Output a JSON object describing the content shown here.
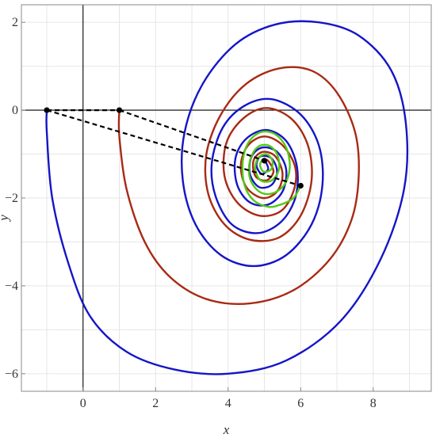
{
  "chart_data": {
    "type": "line",
    "title": "",
    "xlabel": "x",
    "ylabel": "y",
    "xlim": [
      -1.7,
      9.6
    ],
    "ylim": [
      -6.4,
      2.4
    ],
    "x_ticks": [
      0,
      2,
      4,
      6,
      8
    ],
    "y_ticks": [
      -6,
      -4,
      -2,
      0,
      2
    ],
    "x_tick_labels": [
      "0",
      "2",
      "4",
      "6",
      "8"
    ],
    "y_tick_labels": [
      "−6",
      "−4",
      "−2",
      "0",
      "2"
    ],
    "grid": true,
    "legend": "none",
    "fixed_point": [
      5.0,
      -1.15
    ],
    "colors": {
      "blue": "#1515c8",
      "red": "#a82a14",
      "green": "#55c818",
      "dashed": "#000000",
      "axis": "#000000",
      "frame": "#888888",
      "grid": "#e6e6e6"
    },
    "series": [
      {
        "color": "blue",
        "start": [
          -1.0,
          0.0
        ],
        "points": [
          [
            -1.0,
            0.0
          ],
          [
            -1.0,
            -0.5
          ],
          [
            -0.85,
            -2.0
          ],
          [
            -0.4,
            -3.5
          ],
          [
            0.2,
            -4.7
          ],
          [
            1.2,
            -5.5
          ],
          [
            2.5,
            -5.9
          ],
          [
            4.0,
            -6.0
          ],
          [
            5.6,
            -5.7
          ],
          [
            7.1,
            -4.8
          ],
          [
            8.2,
            -3.4
          ],
          [
            8.85,
            -1.8
          ],
          [
            8.9,
            -0.3
          ],
          [
            8.5,
            0.9
          ],
          [
            7.6,
            1.7
          ],
          [
            6.5,
            2.0
          ],
          [
            5.3,
            1.95
          ],
          [
            4.2,
            1.5
          ],
          [
            3.3,
            0.6
          ],
          [
            2.8,
            -0.5
          ],
          [
            2.75,
            -1.6
          ],
          [
            3.1,
            -2.6
          ],
          [
            3.8,
            -3.3
          ],
          [
            4.7,
            -3.55
          ],
          [
            5.6,
            -3.3
          ],
          [
            6.3,
            -2.6
          ],
          [
            6.6,
            -1.7
          ],
          [
            6.5,
            -0.8
          ],
          [
            6.0,
            -0.1
          ],
          [
            5.2,
            0.25
          ],
          [
            4.45,
            0.1
          ],
          [
            3.85,
            -0.4
          ],
          [
            3.55,
            -1.2
          ],
          [
            3.65,
            -1.95
          ],
          [
            4.1,
            -2.6
          ],
          [
            4.8,
            -2.8
          ],
          [
            5.45,
            -2.55
          ],
          [
            5.85,
            -2.0
          ],
          [
            5.9,
            -1.3
          ],
          [
            5.6,
            -0.7
          ],
          [
            5.05,
            -0.45
          ],
          [
            4.5,
            -0.65
          ],
          [
            4.2,
            -1.1
          ],
          [
            4.25,
            -1.7
          ],
          [
            4.6,
            -2.1
          ],
          [
            5.1,
            -2.15
          ],
          [
            5.5,
            -1.85
          ],
          [
            5.6,
            -1.35
          ],
          [
            5.35,
            -0.95
          ],
          [
            4.95,
            -0.85
          ],
          [
            4.65,
            -1.05
          ],
          [
            4.6,
            -1.45
          ],
          [
            4.85,
            -1.75
          ],
          [
            5.2,
            -1.7
          ],
          [
            5.35,
            -1.4
          ],
          [
            5.2,
            -1.1
          ],
          [
            4.9,
            -1.05
          ],
          [
            4.78,
            -1.25
          ],
          [
            4.92,
            -1.45
          ],
          [
            5.1,
            -1.35
          ],
          [
            5.05,
            -1.2
          ],
          [
            5.0,
            -1.15
          ]
        ]
      },
      {
        "color": "red",
        "start": [
          1.0,
          0.0
        ],
        "points": [
          [
            1.0,
            0.0
          ],
          [
            1.0,
            -0.6
          ],
          [
            1.2,
            -1.8
          ],
          [
            1.7,
            -3.0
          ],
          [
            2.4,
            -3.8
          ],
          [
            3.4,
            -4.3
          ],
          [
            4.6,
            -4.4
          ],
          [
            5.8,
            -4.1
          ],
          [
            6.8,
            -3.4
          ],
          [
            7.4,
            -2.5
          ],
          [
            7.6,
            -1.5
          ],
          [
            7.5,
            -0.5
          ],
          [
            7.0,
            0.4
          ],
          [
            6.3,
            0.9
          ],
          [
            5.4,
            0.95
          ],
          [
            4.5,
            0.6
          ],
          [
            3.8,
            -0.1
          ],
          [
            3.4,
            -1.0
          ],
          [
            3.45,
            -1.9
          ],
          [
            3.9,
            -2.6
          ],
          [
            4.6,
            -2.95
          ],
          [
            5.4,
            -2.9
          ],
          [
            6.0,
            -2.4
          ],
          [
            6.3,
            -1.6
          ],
          [
            6.2,
            -0.8
          ],
          [
            5.75,
            -0.2
          ],
          [
            5.05,
            0.05
          ],
          [
            4.4,
            -0.2
          ],
          [
            3.95,
            -0.75
          ],
          [
            3.9,
            -1.5
          ],
          [
            4.25,
            -2.1
          ],
          [
            4.85,
            -2.4
          ],
          [
            5.45,
            -2.3
          ],
          [
            5.8,
            -1.85
          ],
          [
            5.85,
            -1.3
          ],
          [
            5.5,
            -0.8
          ],
          [
            5.0,
            -0.6
          ],
          [
            4.55,
            -0.8
          ],
          [
            4.35,
            -1.25
          ],
          [
            4.5,
            -1.75
          ],
          [
            4.95,
            -2.0
          ],
          [
            5.35,
            -1.85
          ],
          [
            5.5,
            -1.45
          ],
          [
            5.3,
            -1.05
          ],
          [
            4.95,
            -0.95
          ],
          [
            4.7,
            -1.15
          ],
          [
            4.75,
            -1.5
          ],
          [
            5.05,
            -1.6
          ],
          [
            5.25,
            -1.4
          ],
          [
            5.1,
            -1.15
          ],
          [
            5.0,
            -1.15
          ]
        ]
      },
      {
        "color": "green",
        "start": [
          6.0,
          -1.72
        ],
        "points": [
          [
            6.0,
            -1.72
          ],
          [
            5.8,
            -2.0
          ],
          [
            5.45,
            -2.15
          ],
          [
            5.1,
            -2.2
          ],
          [
            4.7,
            -2.05
          ],
          [
            4.45,
            -1.7
          ],
          [
            4.4,
            -1.2
          ],
          [
            4.55,
            -0.75
          ],
          [
            4.9,
            -0.5
          ],
          [
            5.3,
            -0.55
          ],
          [
            5.6,
            -0.85
          ],
          [
            5.7,
            -1.3
          ],
          [
            5.55,
            -1.7
          ],
          [
            5.2,
            -1.9
          ],
          [
            4.85,
            -1.85
          ],
          [
            4.6,
            -1.55
          ],
          [
            4.6,
            -1.15
          ],
          [
            4.8,
            -0.85
          ],
          [
            5.1,
            -0.8
          ],
          [
            5.35,
            -1.0
          ],
          [
            5.4,
            -1.35
          ],
          [
            5.2,
            -1.6
          ],
          [
            4.9,
            -1.6
          ],
          [
            4.75,
            -1.35
          ],
          [
            4.82,
            -1.1
          ],
          [
            5.05,
            -1.0
          ],
          [
            5.22,
            -1.15
          ],
          [
            5.18,
            -1.35
          ],
          [
            4.98,
            -1.4
          ],
          [
            4.88,
            -1.25
          ],
          [
            4.96,
            -1.12
          ],
          [
            5.0,
            -1.15
          ]
        ]
      }
    ],
    "dashed_lines": [
      {
        "from": [
          -1.0,
          0.0
        ],
        "to": [
          1.0,
          0.0
        ]
      },
      {
        "from": [
          -1.0,
          0.0
        ],
        "to": [
          6.0,
          -1.72
        ]
      },
      {
        "from": [
          1.0,
          0.0
        ],
        "to": [
          5.0,
          -1.15
        ]
      }
    ],
    "markers": [
      [
        -1.0,
        0.0
      ],
      [
        1.0,
        0.0
      ],
      [
        6.0,
        -1.72
      ],
      [
        5.0,
        -1.15
      ]
    ]
  }
}
